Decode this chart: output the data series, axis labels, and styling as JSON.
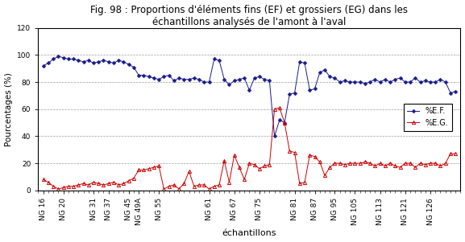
{
  "title": "Fig. 98 : Proportions d'éléments fins (EF) et grossiers (EG) dans les\néchantillons analysés de l'amont à l'aval",
  "xlabel": "échantillons",
  "ylabel": "Pourcentages (%)",
  "xlabels": [
    "NG 16",
    "NG 20",
    "NG 31",
    "NG 37",
    "NG 45",
    "NG 49A",
    "NG 55",
    "NG 61",
    "NG 67",
    "NG 75",
    "NG 81",
    "NG 87",
    "NG 95",
    "NG 105",
    "NG 113",
    "NG 121",
    "NG 126"
  ],
  "ylim": [
    0,
    120
  ],
  "yticks": [
    0,
    20,
    40,
    60,
    80,
    100,
    120
  ],
  "ef_values": [
    92,
    94,
    97,
    99,
    98,
    97,
    97,
    96,
    95,
    96,
    94,
    95,
    96,
    95,
    94,
    96,
    95,
    93,
    91,
    85,
    85,
    84,
    83,
    82,
    84,
    85,
    81,
    83,
    82,
    82,
    83,
    82,
    80,
    80,
    97,
    96,
    82,
    78,
    81,
    82,
    83,
    74,
    83,
    84,
    82,
    81,
    40,
    52,
    50,
    71,
    72,
    95,
    94,
    74,
    75,
    87,
    89,
    84,
    83,
    80,
    81,
    80,
    80,
    80,
    79,
    80,
    82,
    80,
    82,
    80,
    82,
    83,
    80,
    80,
    83,
    80,
    81,
    80,
    80,
    82,
    80,
    72,
    73
  ],
  "eg_values": [
    8,
    6,
    3,
    1,
    2,
    3,
    3,
    4,
    5,
    4,
    6,
    5,
    4,
    5,
    6,
    4,
    5,
    7,
    9,
    15,
    15,
    16,
    17,
    18,
    1,
    3,
    4,
    1,
    5,
    14,
    3,
    4,
    4,
    1,
    3,
    4,
    22,
    6,
    26,
    17,
    8,
    20,
    19,
    16,
    18,
    19,
    60,
    61,
    50,
    29,
    28,
    5,
    6,
    26,
    25,
    21,
    11,
    17,
    20,
    20,
    19,
    20,
    20,
    20,
    21,
    20,
    18,
    20,
    18,
    20,
    18,
    17,
    20,
    20,
    17,
    20,
    19,
    20,
    20,
    18,
    20,
    27,
    27
  ],
  "ef_color": "#1a1a8c",
  "eg_color": "#cc0000",
  "ef_label": "%E.F.",
  "eg_label": "%E.G.",
  "background_color": "#ffffff",
  "grid_color": "#888888",
  "xtick_indices": [
    0,
    4,
    10,
    13,
    17,
    19,
    23,
    33,
    38,
    43,
    50,
    54,
    58,
    62,
    67,
    72,
    77
  ],
  "legend_fontsize": 7,
  "title_fontsize": 8.5,
  "xlabel_fontsize": 8,
  "ylabel_fontsize": 7.5,
  "tick_fontsize": 6.5
}
